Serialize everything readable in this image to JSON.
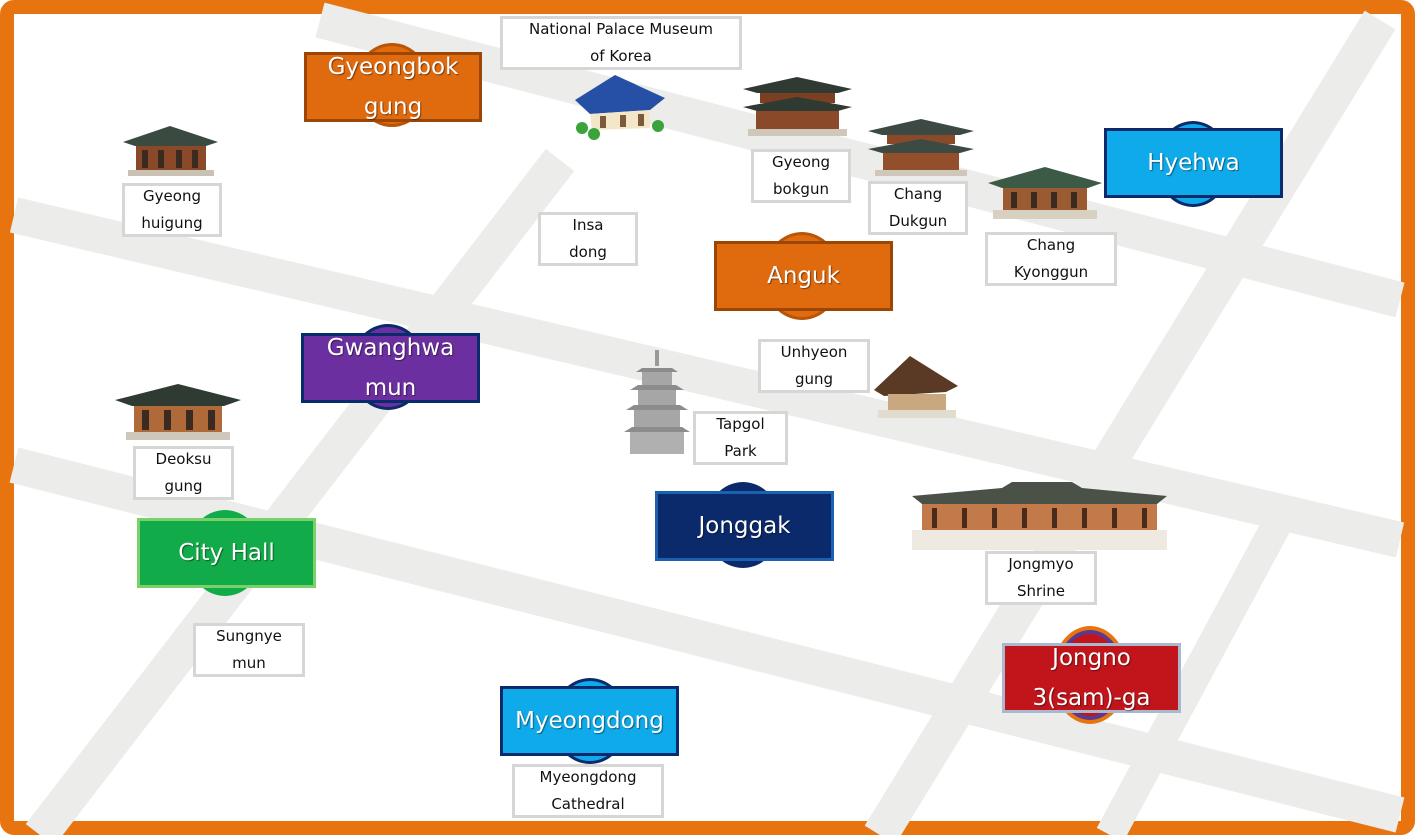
{
  "stations": {
    "gyeongbokgung": "Gyeongbok\ngung",
    "anguk": "Anguk",
    "hyehwa": "Hyehwa",
    "gwanghwamun": "Gwanghwa\nmun",
    "city_hall": "City Hall",
    "jonggak": "Jonggak",
    "jongno3ga": "Jongno\n3(sam)-ga",
    "myeongdong": "Myeongdong"
  },
  "places": {
    "national_palace_museum": "National Palace Museum\nof Korea",
    "gyeonghuigung": "Gyeong\nhuigung",
    "insadong": "Insa\ndong",
    "gyeongbokgun": "Gyeong\nbokgun",
    "changdukgun": "Chang\nDukgun",
    "changkyonggun": "Chang\nKyonggun",
    "unhyeongung": "Unhyeon\ngung",
    "tapgol_park": "Tapgol\nPark",
    "deoksugung": "Deoksu\ngung",
    "jongmyo_shrine": "Jongmyo\nShrine",
    "sungnyemun": "Sungnye\nmun",
    "myeongdong_cathedral": "Myeongdong\nCathedral"
  },
  "colors": {
    "frame": "#e8740f",
    "road": "#ececea",
    "line3_orange": "#e06a0e",
    "line4_skyblue": "#0eaaea",
    "line5_purple": "#6c2fa0",
    "line2_green": "#12ab4a",
    "line1_navy": "#0b2a6b",
    "jongno3ga_red": "#c2151b"
  },
  "icons": [
    "palace-icon",
    "museum-icon",
    "pagoda-icon",
    "shrine-icon"
  ]
}
